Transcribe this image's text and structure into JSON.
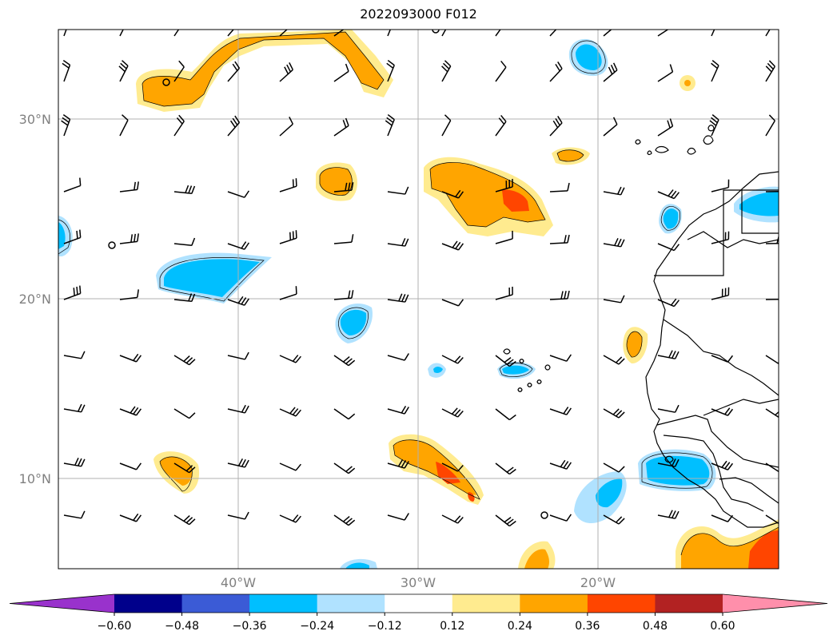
{
  "title": "2022093000 F012",
  "map": {
    "lon_range": [
      -50,
      -10
    ],
    "lat_range": [
      5,
      35
    ],
    "lat_ticks": [
      {
        "value": 30,
        "label": "30°N"
      },
      {
        "value": 20,
        "label": "20°N"
      },
      {
        "value": 10,
        "label": "10°N"
      }
    ],
    "lon_ticks": [
      {
        "value": -40,
        "label": "40°W"
      },
      {
        "value": -30,
        "label": "30°W"
      },
      {
        "value": -20,
        "label": "20°W"
      }
    ],
    "grid": true
  },
  "colorbar": {
    "extend": "both",
    "colors": [
      "#9932cc",
      "#00008b",
      "#3b5bd6",
      "#00bfff",
      "#b0e2ff",
      "#ffffff",
      "#ffeb8f",
      "#ffa500",
      "#ff4500",
      "#b22222",
      "#ff8fab"
    ],
    "ticks": [
      "−0.60",
      "−0.48",
      "−0.36",
      "−0.24",
      "−0.12",
      "0.12",
      "0.24",
      "0.36",
      "0.48",
      "0.60"
    ]
  }
}
